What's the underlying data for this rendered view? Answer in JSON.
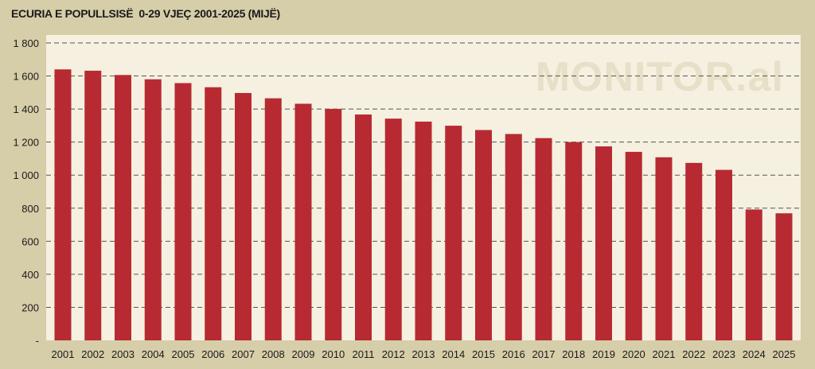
{
  "chart_data": {
    "type": "bar",
    "title": "ECURIA E POPULLSISË  0-29 VJEÇ 2001-2025 (MIJË)",
    "watermark": "MONITOR.al",
    "categories": [
      "2001",
      "2002",
      "2003",
      "2004",
      "2005",
      "2006",
      "2007",
      "2008",
      "2009",
      "2010",
      "2011",
      "2012",
      "2013",
      "2014",
      "2015",
      "2016",
      "2017",
      "2018",
      "2019",
      "2020",
      "2021",
      "2022",
      "2023",
      "2024",
      "2025"
    ],
    "values": [
      1640,
      1632,
      1606,
      1580,
      1557,
      1532,
      1497,
      1465,
      1432,
      1401,
      1367,
      1342,
      1324,
      1299,
      1273,
      1249,
      1224,
      1200,
      1174,
      1141,
      1108,
      1074,
      1032,
      792,
      769
    ],
    "y_ticks": [
      "-",
      "200",
      "400",
      "600",
      "800",
      "1 000",
      "1 200",
      "1 400",
      "1 600",
      "1 800"
    ],
    "ylim": [
      0,
      1800
    ],
    "grid": true,
    "bar_color": "#b72a32",
    "plot_bg": "#f5f0e0",
    "grid_color": "#555555"
  }
}
